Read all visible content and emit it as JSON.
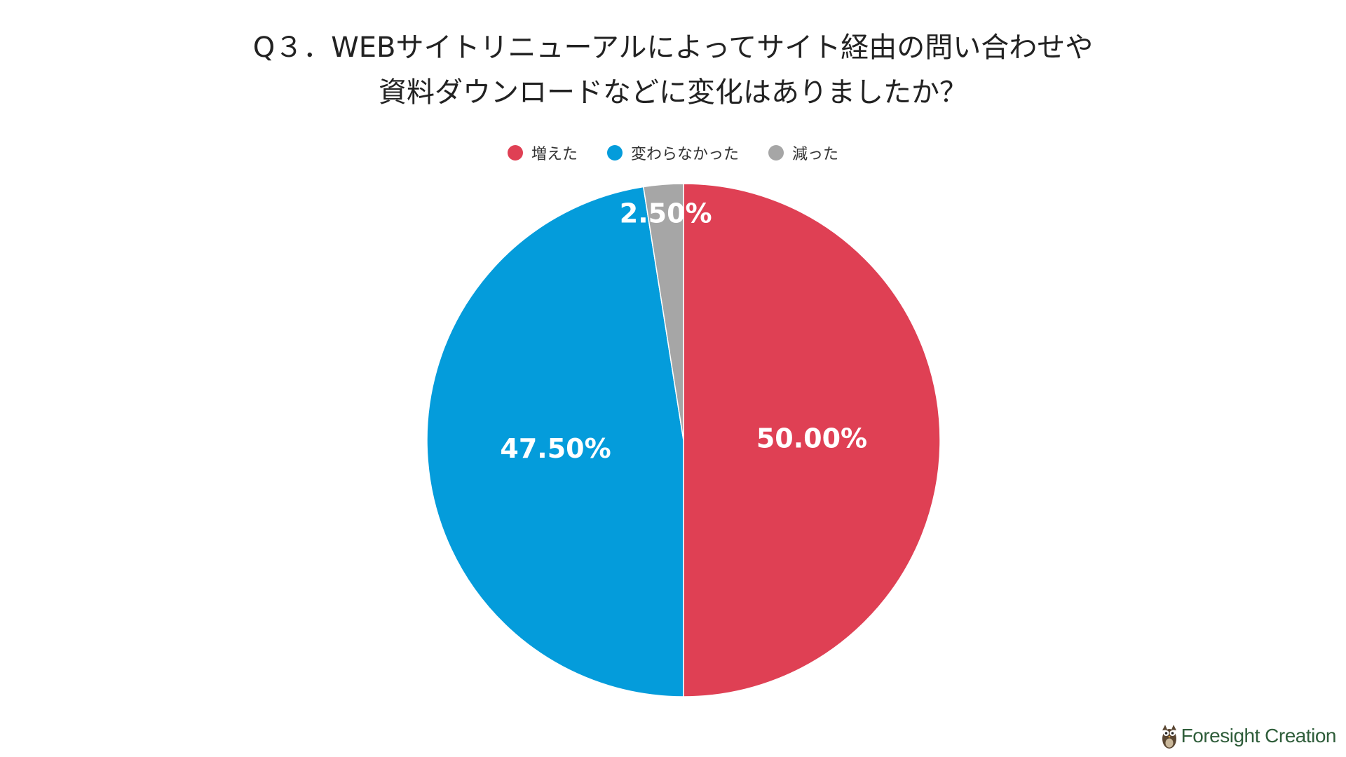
{
  "chart_data": {
    "type": "pie",
    "title_lines": [
      "Q３．WEBサイトリニューアルによってサイト経由の問い合わせや",
      "資料ダウンロードなどに変化はありましたか？"
    ],
    "categories": [
      "増えた",
      "変わらなかった",
      "減った"
    ],
    "values": [
      50.0,
      47.5,
      2.5
    ],
    "labels": [
      "50.00%",
      "47.50%",
      "2.50%"
    ],
    "colors": [
      "#df4054",
      "#049cdb",
      "#a6a6a6"
    ],
    "legend_position": "top-center",
    "start_angle": "12 o'clock",
    "direction": "clockwise"
  },
  "logo": {
    "text": "Foresight Creation",
    "icon": "owl-icon"
  }
}
